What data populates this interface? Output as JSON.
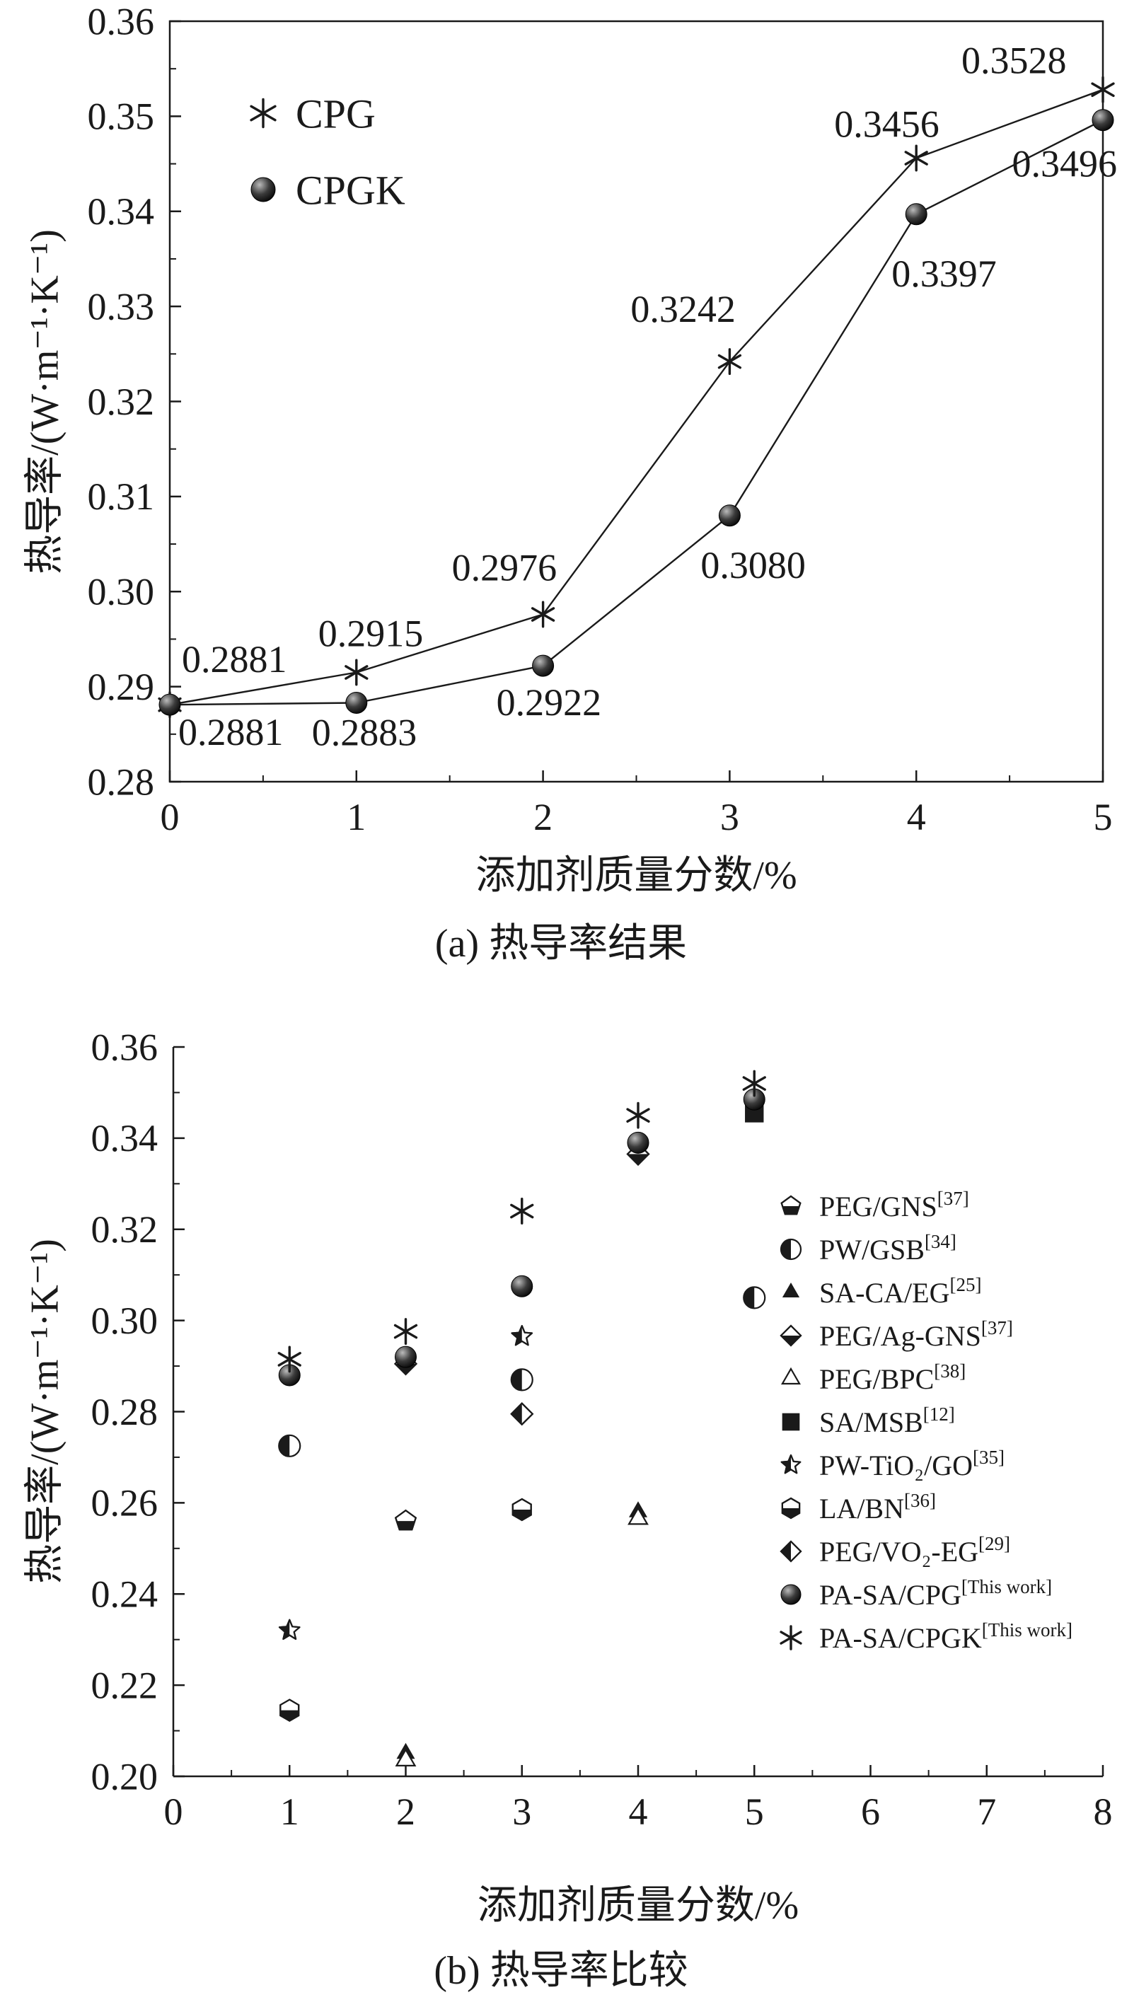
{
  "colors": {
    "ink": "#1a1a1a",
    "background": "#ffffff"
  },
  "chart_data": [
    {
      "panel": "a",
      "type": "line",
      "caption": "(a) 热导率结果",
      "xlabel": "添加剂质量分数/%",
      "ylabel": "热导率/(W·m⁻¹·K⁻¹)",
      "xlim": [
        0,
        5
      ],
      "ylim": [
        0.28,
        0.36
      ],
      "xticks": [
        "0",
        "1",
        "2",
        "3",
        "4",
        "5"
      ],
      "yticks": [
        "0.28",
        "0.29",
        "0.30",
        "0.31",
        "0.32",
        "0.33",
        "0.34",
        "0.35",
        "0.36"
      ],
      "grid": false,
      "legend_position": "inside-top-left",
      "series": [
        {
          "name": "CPG",
          "marker": "asterisk",
          "points": [
            [
              0,
              0.2881
            ],
            [
              1,
              0.2915
            ],
            [
              2,
              0.2976
            ],
            [
              3,
              0.3242
            ],
            [
              4,
              0.3456
            ],
            [
              5,
              0.3528
            ]
          ],
          "point_labels": [
            "0.2881",
            "0.2915",
            "0.2976",
            "0.3242",
            "0.3456",
            "0.3528"
          ],
          "label_layout": [
            [
              17,
              -46,
              "start"
            ],
            [
              -54,
              -37,
              "start"
            ],
            [
              -129,
              -48,
              "start"
            ],
            [
              -140,
              -56,
              "start"
            ],
            [
              -116,
              -30,
              "start"
            ],
            [
              -200,
              -23,
              "start"
            ]
          ]
        },
        {
          "name": "CPGK",
          "marker": "sphere",
          "points": [
            [
              0,
              0.2881
            ],
            [
              1,
              0.2883
            ],
            [
              2,
              0.2922
            ],
            [
              3,
              0.308
            ],
            [
              4,
              0.3397
            ],
            [
              5,
              0.3496
            ]
          ],
          "point_labels": [
            "0.2881",
            "0.2883",
            "0.2922",
            "0.3080",
            "0.3397",
            "0.3496"
          ],
          "label_layout": [
            [
              12,
              57,
              "start"
            ],
            [
              -63,
              60,
              "start"
            ],
            [
              -66,
              70,
              "start"
            ],
            [
              -41,
              88,
              "start"
            ],
            [
              -35,
              102,
              "start"
            ],
            [
              20,
              80,
              "end"
            ]
          ]
        }
      ]
    },
    {
      "panel": "b",
      "type": "scatter",
      "caption": "(b) 热导率比较",
      "xlabel": "添加剂质量分数/%",
      "ylabel": "热导率/(W·m⁻¹·K⁻¹)",
      "xlim": [
        0,
        8
      ],
      "ylim": [
        0.2,
        0.36
      ],
      "xticks": [
        "0",
        "1",
        "2",
        "3",
        "4",
        "5",
        "6",
        "7",
        "8"
      ],
      "yticks": [
        "0.20",
        "0.22",
        "0.24",
        "0.26",
        "0.28",
        "0.30",
        "0.32",
        "0.34",
        "0.36"
      ],
      "grid": false,
      "legend_position": "inside-right",
      "series": [
        {
          "name": "PEG/GNS",
          "sup": "[37]",
          "marker": "pentagon-half",
          "points": [
            [
              2,
              0.256
            ]
          ]
        },
        {
          "name": "PW/GSB",
          "sup": "[34]",
          "marker": "circle-half",
          "points": [
            [
              1,
              0.2725
            ],
            [
              3,
              0.287
            ],
            [
              5,
              0.305
            ]
          ]
        },
        {
          "name": "SA-CA/EG",
          "sup": "[25]",
          "marker": "triangle-filled",
          "points": [
            [
              2,
              0.205
            ],
            [
              4,
              0.258
            ]
          ]
        },
        {
          "name": "PEG/Ag-GNS",
          "sup": "[37]",
          "marker": "diamond-half-bottom",
          "points": [
            [
              2,
              0.2905
            ],
            [
              4,
              0.3365
            ]
          ]
        },
        {
          "name": "PEG/BPC",
          "sup": "[38]",
          "marker": "triangle-open",
          "points": [
            [
              2,
              0.2035
            ],
            [
              4,
              0.2565
            ]
          ]
        },
        {
          "name": "SA/MSB",
          "sup": "[12]",
          "marker": "square-filled",
          "points": [
            [
              5,
              0.3455
            ]
          ]
        },
        {
          "name": "PW-TiO₂/GO",
          "sup": "[35]",
          "marker": "star-half",
          "points": [
            [
              1,
              0.232
            ],
            [
              3,
              0.2965
            ]
          ]
        },
        {
          "name": "LA/BN",
          "sup": "[36]",
          "marker": "hexagon-half",
          "points": [
            [
              1,
              0.2145
            ],
            [
              3,
              0.2585
            ]
          ]
        },
        {
          "name": "PEG/VO₂-EG",
          "sup": "[29]",
          "marker": "diamond-half-left",
          "points": [
            [
              3,
              0.2795
            ]
          ]
        },
        {
          "name": "PA-SA/CPG",
          "sup": "[This work]",
          "marker": "sphere",
          "points": [
            [
              1,
              0.288
            ],
            [
              2,
              0.292
            ],
            [
              3,
              0.3075
            ],
            [
              4,
              0.339
            ],
            [
              5,
              0.3485
            ]
          ]
        },
        {
          "name": "PA-SA/CPGK",
          "sup": "[This work]",
          "marker": "asterisk",
          "points": [
            [
              1,
              0.2915
            ],
            [
              2,
              0.2976
            ],
            [
              3,
              0.324
            ],
            [
              4,
              0.345
            ],
            [
              5,
              0.352
            ]
          ]
        }
      ]
    }
  ]
}
